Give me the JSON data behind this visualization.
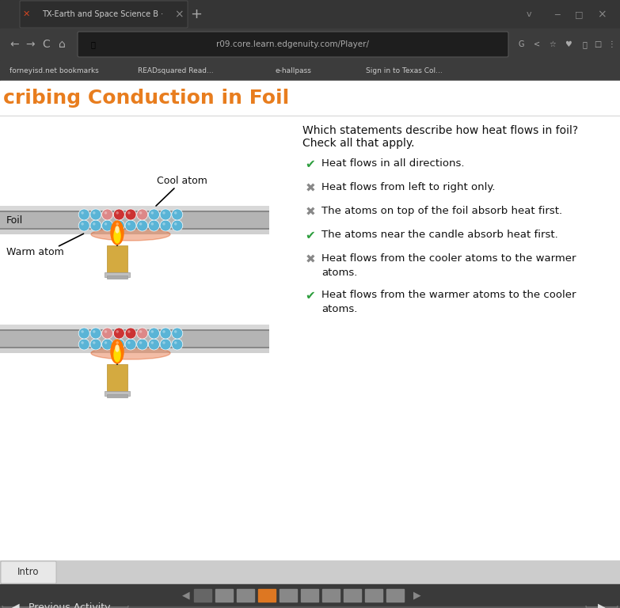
{
  "browser_bg": "#2d2d2d",
  "tab_bar_bg": "#3a3a3a",
  "tab_bg": "#2d2d2d",
  "nav_bar_bg": "#3a3a3a",
  "bk_bar_bg": "#3a3a3a",
  "page_bg": "#ffffff",
  "title_text": "cribing Conduction in Foil",
  "title_color": "#e87d1e",
  "title_bg": "#ffffff",
  "question_text_line1": "Which statements describe how heat flows in foil?",
  "question_text_line2": "Check all that apply.",
  "items": [
    {
      "icon": "check",
      "text": "Heat flows in all directions."
    },
    {
      "icon": "x",
      "text": "Heat flows from left to right only."
    },
    {
      "icon": "x",
      "text": "The atoms on top of the foil absorb heat first."
    },
    {
      "icon": "check",
      "text": "The atoms near the candle absorb heat first."
    },
    {
      "icon": "x",
      "text": "Heat flows from the cooler atoms to the warmer\natoms."
    },
    {
      "icon": "check",
      "text": "Heat flows from the warmer atoms to the cooler\natoms."
    }
  ],
  "check_color": "#2e9e3e",
  "x_color": "#888888",
  "atom_blue": "#5ab4d6",
  "atom_red": "#cc3333",
  "atom_pink": "#dd8888",
  "foil_bg": "#b0b0b0",
  "foil_light": "#d8d8d8",
  "foil_dark": "#909090",
  "url_bar_text": "r09.core.learn.edgenuity.com/Player/",
  "tab_title": "TX-Earth and Space Science B ·",
  "foil_label": "Foil",
  "cool_atom_label": "Cool atom",
  "warm_atom_label": "Warm atom",
  "nav_dot_colors": [
    "#666666",
    "#888888",
    "#888888",
    "#dd7722",
    "#888888",
    "#888888",
    "#888888",
    "#888888",
    "#888888",
    "#888888"
  ]
}
